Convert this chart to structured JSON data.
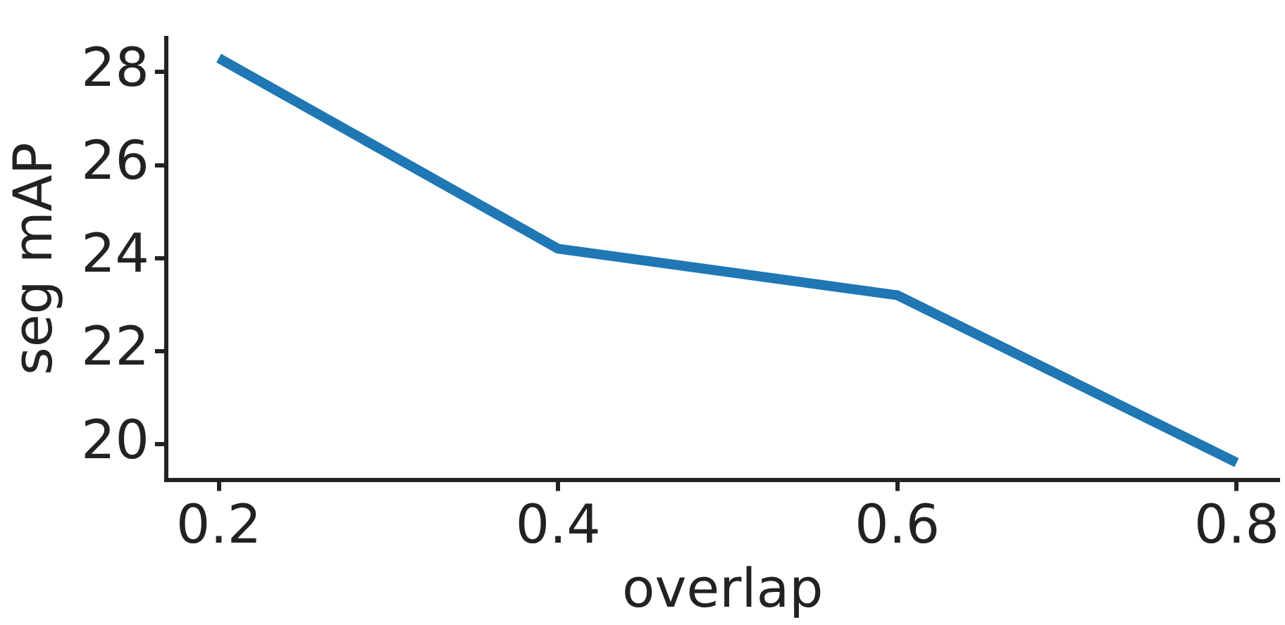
{
  "chart_data": {
    "type": "line",
    "xlabel": "overlap",
    "ylabel": "seg mAP",
    "x": [
      0.2,
      0.4,
      0.6,
      0.8
    ],
    "series": [
      {
        "color": "#1f77b4",
        "values": [
          28.3,
          24.2,
          23.2,
          19.6
        ]
      }
    ],
    "xlim": [
      0.169,
      0.825
    ],
    "xticks": [
      0.2,
      0.4,
      0.6,
      0.8
    ],
    "ylim": [
      19.23,
      28.74
    ],
    "yticks": [
      20,
      22,
      24,
      26,
      28
    ],
    "grid": false,
    "legend": false,
    "marker": "none",
    "line_style": "solid"
  }
}
